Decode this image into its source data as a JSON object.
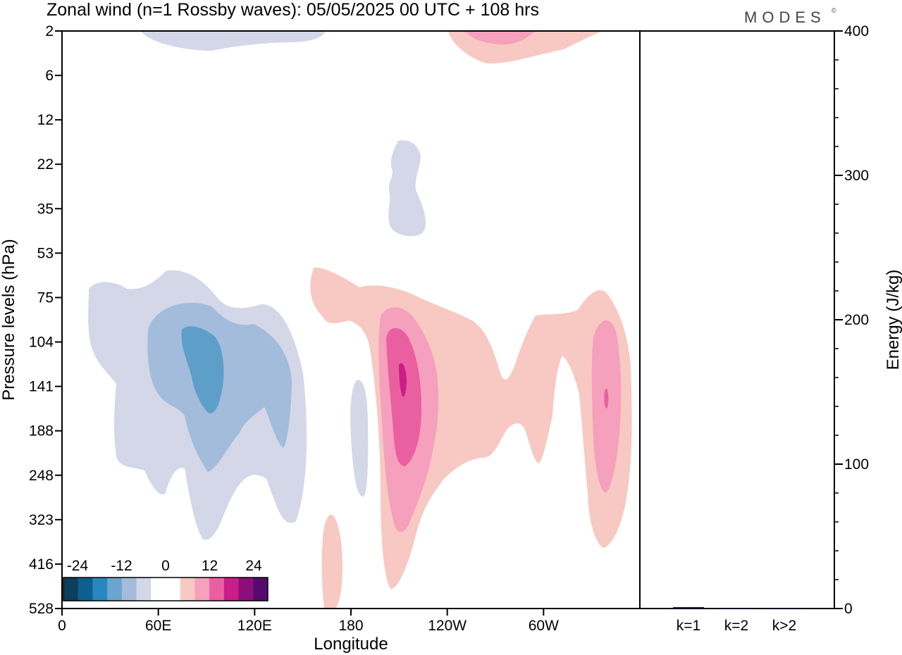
{
  "title": "Zonal wind (n=1 Rossby waves):  05/05/2025  00 UTC  + 108 hrs",
  "brand": "MODES",
  "brand_mark": "©",
  "chart_data": [
    {
      "type": "heatmap",
      "xlabel": "Longitude",
      "ylabel": "Pressure levels (hPa)",
      "x_ticks": [
        "0",
        "60E",
        "120E",
        "180",
        "120W",
        "60W"
      ],
      "x_tick_values": [
        0,
        60,
        120,
        180,
        240,
        300
      ],
      "xlim": [
        0,
        360
      ],
      "y_ticks": [
        "2",
        "6",
        "12",
        "22",
        "35",
        "53",
        "75",
        "104",
        "141",
        "188",
        "248",
        "323",
        "416",
        "528"
      ],
      "y_scale": "categorical pressure levels, top to bottom",
      "colorbar": {
        "tick_labels": [
          "-24",
          "-12",
          "0",
          "12",
          "24"
        ],
        "colors": [
          "#0f3d5c",
          "#0d5e91",
          "#2a86c0",
          "#6aa5ce",
          "#a3bcdb",
          "#d4d7e8",
          "#ffffff",
          "#ffffff",
          "#f8c8c3",
          "#f5a0bc",
          "#ea5fa0",
          "#c91d8a",
          "#8c0e78",
          "#560a6e"
        ]
      },
      "features": [
        {
          "sign": "negative",
          "region": "upper stratosphere, 60E-120E near 2 hPa",
          "peak": -3
        },
        {
          "sign": "positive",
          "region": "upper stratosphere, 120W-70W near 2 hPa",
          "peak": 9
        },
        {
          "sign": "negative",
          "region": "near 150W, 16-45 hPa",
          "peak": -3
        },
        {
          "sign": "negative",
          "region": "20E-150E, 70-300 hPa",
          "peak": -13
        },
        {
          "sign": "positive",
          "region": "170E-130W, 70-480 hPa",
          "peak": 17
        },
        {
          "sign": "positive",
          "region": "100W-70W, 70-330 hPa",
          "peak": 10
        },
        {
          "sign": "positive",
          "region": "near 90W, 75-360 hPa",
          "peak": 12
        }
      ]
    },
    {
      "type": "bar",
      "ylabel": "Energy (J/kg)",
      "categories": [
        "k=1",
        "k=2",
        "k>2"
      ],
      "values": [
        1,
        0,
        0.5
      ],
      "ylim": [
        0,
        400
      ],
      "y_ticks": [
        "0",
        "100",
        "200",
        "300",
        "400"
      ],
      "colors": [
        "#1a1450",
        "#1a1450",
        "#1a1450"
      ]
    }
  ]
}
